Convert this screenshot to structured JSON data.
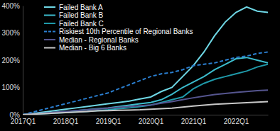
{
  "chart_data": {
    "type": "line",
    "categories": [
      "2017Q1",
      null,
      null,
      null,
      "2018Q1",
      null,
      null,
      null,
      "2019Q1",
      null,
      null,
      null,
      "2020Q1",
      null,
      null,
      null,
      "2021Q1",
      null,
      null,
      null,
      "2022Q1",
      null,
      null,
      null
    ],
    "series": [
      {
        "name": "Failed Bank A",
        "color": "#6fd8e6",
        "line_style": "solid",
        "values": [
          0,
          5,
          10,
          15,
          20,
          25,
          30,
          35,
          40,
          45,
          50,
          58,
          65,
          85,
          100,
          140,
          180,
          230,
          290,
          340,
          375,
          395,
          380,
          375
        ]
      },
      {
        "name": "Failed Bank B",
        "color": "#3cbccd",
        "line_style": "solid",
        "values": [
          0,
          3,
          6,
          9,
          12,
          15,
          18,
          22,
          25,
          30,
          35,
          40,
          45,
          55,
          75,
          100,
          120,
          140,
          165,
          185,
          205,
          210,
          200,
          190
        ]
      },
      {
        "name": "Failed Bank C",
        "color": "#1f9aaa",
        "line_style": "solid",
        "values": [
          0,
          2,
          4,
          6,
          8,
          10,
          12,
          15,
          18,
          22,
          25,
          30,
          35,
          45,
          55,
          65,
          95,
          115,
          130,
          140,
          150,
          160,
          175,
          185
        ]
      },
      {
        "name": "Riskiest 10th Percentile of Regional Banks",
        "color": "#2b7fd0",
        "line_style": "dashed",
        "values": [
          0,
          10,
          20,
          30,
          40,
          50,
          60,
          70,
          80,
          95,
          110,
          125,
          140,
          150,
          155,
          165,
          180,
          185,
          190,
          200,
          210,
          215,
          225,
          230
        ]
      },
      {
        "name": "Median - Regional Banks",
        "color": "#55558f",
        "line_style": "solid",
        "values": [
          0,
          3,
          6,
          9,
          12,
          15,
          18,
          21,
          24,
          27,
          30,
          33,
          36,
          42,
          48,
          55,
          62,
          68,
          74,
          78,
          82,
          85,
          88,
          90
        ]
      },
      {
        "name": "Median - Big 6 Banks",
        "color": "#c8c8c8",
        "line_style": "solid",
        "values": [
          0,
          2,
          4,
          6,
          8,
          10,
          12,
          14,
          15,
          16,
          17,
          18,
          20,
          22,
          24,
          28,
          32,
          35,
          38,
          40,
          42,
          44,
          46,
          48
        ]
      }
    ],
    "ylim": [
      0,
      400
    ],
    "yticks": [
      {
        "value": 0,
        "label": "0%"
      },
      {
        "value": 100,
        "label": "100%"
      },
      {
        "value": 200,
        "label": "200%"
      },
      {
        "value": 300,
        "label": "300%"
      },
      {
        "value": 400,
        "label": "400%"
      }
    ],
    "grid": false,
    "legend": "upper left"
  }
}
